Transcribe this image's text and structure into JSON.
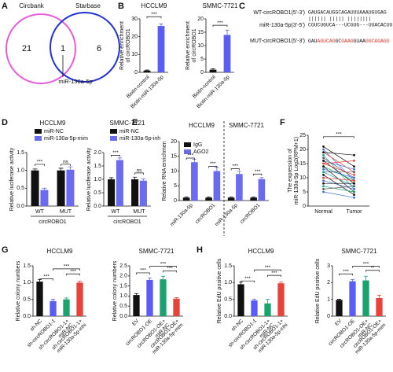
{
  "panels": [
    "A",
    "B",
    "C",
    "D",
    "E",
    "F",
    "G",
    "H"
  ],
  "venn": {
    "sets": [
      {
        "label": "Circbank",
        "count": 21
      },
      {
        "label": "Starbase",
        "count": 6
      }
    ],
    "overlap": {
      "count": 1,
      "label": "miR-130a-5p"
    }
  },
  "sequences": {
    "wt_label": "WT-circROBO1(5'-3')",
    "wt": "GAUGACAUGGCAGAUUUAAAUGUGAG",
    "pairing": "||||||   |||||    ||||||||",
    "mir_label": "miR-130a-5p(3'-5')",
    "mir": "CGUCUGUCA---UCGUG---UUACACUU",
    "mut_label": "MUT-circROBO1(5'-3')",
    "mut": [
      {
        "text": "GAU",
        "color": "#111111"
      },
      {
        "text": "AGUCAG",
        "color": "#e8312a"
      },
      {
        "text": "GC",
        "color": "#111111"
      },
      {
        "text": "GAAG",
        "color": "#e8312a"
      },
      {
        "text": "GUAA",
        "color": "#111111"
      },
      {
        "text": "GGCAGAGG",
        "color": "#e8312a"
      }
    ]
  },
  "chart_data": [
    {
      "type": "bar",
      "title": "HCCLM9",
      "ylabel": "Relative enrichment of circROBO1",
      "categories": [
        "Biotin-control",
        "Biotin-miR-130a-5p"
      ],
      "values": [
        1,
        26
      ],
      "errors": [
        0.3,
        1.2
      ],
      "colors": [
        "#111111",
        "#5b5bf5"
      ],
      "ylim": [
        0,
        30
      ],
      "yticks": [
        0,
        10,
        20,
        30
      ],
      "annotations": [
        "***"
      ]
    },
    {
      "type": "bar",
      "title": "SMMC-7721",
      "ylabel": "Relative enrichment of circROBO1",
      "categories": [
        "Biotin-control",
        "Biotin-miR-130a-5p"
      ],
      "values": [
        1,
        14
      ],
      "errors": [
        0.3,
        1.8
      ],
      "colors": [
        "#111111",
        "#5b5bf5"
      ],
      "ylim": [
        0,
        20
      ],
      "yticks": [
        0,
        5,
        10,
        15,
        20
      ],
      "annotations": [
        "***"
      ]
    },
    {
      "type": "bar",
      "title": "HCCLM9",
      "ylabel": "Relative luciferase activity",
      "xlabel": "circROBO1",
      "categories": [
        "WT",
        "MUT"
      ],
      "series": [
        {
          "name": "miR-NC",
          "color": "#111111",
          "values": [
            1.0,
            1.0
          ],
          "errors": [
            0.04,
            0.06
          ]
        },
        {
          "name": "miR-130a-5p-mim",
          "color": "#6b6bf0",
          "values": [
            0.45,
            1.02
          ],
          "errors": [
            0.05,
            0.08
          ]
        }
      ],
      "ylim": [
        0,
        1.5
      ],
      "yticks": [
        {
          "value": 0,
          "label": "0.0"
        },
        0.5,
        {
          "value": 1,
          "label": "1.0"
        },
        1.5
      ],
      "annotations": [
        "***",
        "ns"
      ]
    },
    {
      "type": "bar",
      "title": "SMMC-7721",
      "ylabel": "Relative luciferase activity",
      "xlabel": "circROBO1",
      "categories": [
        "WT",
        "MUT"
      ],
      "series": [
        {
          "name": "miR-NC",
          "color": "#111111",
          "values": [
            1.0,
            1.0
          ],
          "errors": [
            0.06,
            0.08
          ]
        },
        {
          "name": "miR-130a-5p-inh",
          "color": "#6b6bf0",
          "values": [
            1.72,
            0.95
          ],
          "errors": [
            0.08,
            0.07
          ]
        }
      ],
      "ylim": [
        0,
        2
      ],
      "yticks": [
        {
          "value": 0,
          "label": "0.0"
        },
        0.5,
        {
          "value": 1,
          "label": "1.0"
        },
        1.5,
        {
          "value": 2,
          "label": "2.0"
        }
      ],
      "annotations": [
        "***",
        "ns"
      ]
    },
    {
      "type": "bar",
      "ylabel": "Relative RNA enrichmen",
      "groups": [
        "HCCLM9",
        "SMMC-7721"
      ],
      "categories": [
        "miR-130a-5p",
        "circROBO1",
        "miR-130a-5p",
        "circROBO1"
      ],
      "series": [
        {
          "name": "IgG",
          "color": "#111111",
          "values": [
            1,
            1,
            1,
            1
          ],
          "errors": [
            0.2,
            0.2,
            0.2,
            0.2
          ]
        },
        {
          "name": "AGO2",
          "color": "#6b6bf0",
          "values": [
            13,
            10,
            9,
            7.3
          ],
          "errors": [
            1,
            1.3,
            0.9,
            0.5
          ]
        }
      ],
      "ylim": [
        0,
        20
      ],
      "yticks": [
        0,
        5,
        10,
        15,
        20
      ],
      "annotations": [
        "***",
        "***",
        "***",
        "***"
      ]
    },
    {
      "type": "line",
      "ylabel": "The expression of miR-130a-5p Log2(RPM+1)",
      "categories": [
        "Normal",
        "Tumor"
      ],
      "series": [
        {
          "color": "#111111",
          "values": [
            21,
            14
          ]
        },
        {
          "color": "#3b6fd6",
          "values": [
            20,
            9
          ]
        },
        {
          "color": "#e8433a",
          "values": [
            19,
            12
          ]
        },
        {
          "color": "#1aa3a3",
          "values": [
            18,
            6
          ]
        },
        {
          "color": "#555555",
          "values": [
            17,
            10
          ]
        },
        {
          "color": "#3b6fd6",
          "values": [
            16,
            13
          ]
        },
        {
          "color": "#111111",
          "values": [
            16,
            8
          ]
        },
        {
          "color": "#e8433a",
          "values": [
            15,
            11
          ]
        },
        {
          "color": "#1aa36f",
          "values": [
            14,
            9
          ]
        },
        {
          "color": "#111111",
          "values": [
            14,
            5
          ]
        },
        {
          "color": "#3b6fd6",
          "values": [
            13,
            10
          ]
        },
        {
          "color": "#555555",
          "values": [
            12,
            12
          ]
        },
        {
          "color": "#1aa3a3",
          "values": [
            12,
            7
          ]
        },
        {
          "color": "#111111",
          "values": [
            11,
            4
          ]
        },
        {
          "color": "#e8433a",
          "values": [
            10,
            9
          ]
        },
        {
          "color": "#3b6fd6",
          "values": [
            9,
            6
          ]
        },
        {
          "color": "#111111",
          "values": [
            8,
            8
          ]
        },
        {
          "color": "#1aa36f",
          "values": [
            7,
            5
          ]
        },
        {
          "color": "#555555",
          "values": [
            6,
            7
          ]
        },
        {
          "color": "#3b6fd6",
          "values": [
            5,
            3
          ]
        },
        {
          "color": "#111111",
          "values": [
            19,
            18
          ]
        },
        {
          "color": "#e8433a",
          "values": [
            15,
            16
          ]
        }
      ],
      "ylim": [
        0,
        25
      ],
      "yticks": [
        0,
        5,
        10,
        15,
        20,
        25
      ],
      "annotations": [
        "***"
      ]
    },
    {
      "type": "bar",
      "title": "HCCLM9",
      "ylabel": "Relative colony numbers",
      "categories": [
        "sh-NC",
        "sh-circROBO1-1",
        "sh-circROBO1-1+miR-NC",
        "sh-circROBO1-1+miR-130a-5p-inhi"
      ],
      "values": [
        1.03,
        0.45,
        0.5,
        1.0
      ],
      "errors": [
        0.06,
        0.05,
        0.04,
        0.04
      ],
      "colors": [
        "#111111",
        "#5b5bf5",
        "#1aa36f",
        "#e8433a"
      ],
      "ylim": [
        0,
        1.5
      ],
      "yticks": [
        {
          "value": 0,
          "label": "0.0"
        },
        0.5,
        {
          "value": 1,
          "label": "1.0"
        },
        1.5
      ],
      "annotations": [
        "***",
        "***",
        "***"
      ]
    },
    {
      "type": "bar",
      "title": "SMMC-7721",
      "ylabel": "Relative colony numbers",
      "categories": [
        "EV",
        "circROBO1-OE",
        "circROBO1-OE+miR-NC",
        "circROBO1-OE+miR-130a-5p-mim"
      ],
      "values": [
        1.05,
        1.8,
        1.83,
        0.87
      ],
      "errors": [
        0.07,
        0.1,
        0.15,
        0.05
      ],
      "colors": [
        "#111111",
        "#5b5bf5",
        "#1aa36f",
        "#e8433a"
      ],
      "ylim": [
        0,
        2.5
      ],
      "yticks": [
        {
          "value": 0,
          "label": "0.0"
        },
        0.5,
        {
          "value": 1,
          "label": "1.0"
        },
        1.5,
        {
          "value": 2,
          "label": "2.0"
        },
        2.5
      ],
      "annotations": [
        "***",
        "***",
        "***"
      ]
    },
    {
      "type": "bar",
      "title": "HCCLM9",
      "ylabel": "Relative EdU positive cells",
      "categories": [
        "sh-NC",
        "sh-circROBO1-1",
        "sh-circROBO1-1+miR-NC",
        "sh-circROBO1-1+miR-130a-5p-inhi"
      ],
      "values": [
        0.95,
        0.47,
        0.38,
        0.98
      ],
      "errors": [
        0.06,
        0.04,
        0.12,
        0.04
      ],
      "colors": [
        "#111111",
        "#5b5bf5",
        "#1aa36f",
        "#e8433a"
      ],
      "ylim": [
        0,
        1.5
      ],
      "yticks": [
        {
          "value": 0,
          "label": "0.0"
        },
        0.5,
        {
          "value": 1,
          "label": "1.0"
        },
        1.5
      ],
      "annotations": [
        "***",
        "***",
        "***"
      ]
    },
    {
      "type": "bar",
      "title": "SMMC-7721",
      "ylabel": "Relative EdU positive cells",
      "categories": [
        "EV",
        "circROBO1-OE",
        "circROBO1-OE+miR-NC",
        "circROBO1-OE+miR-130a-5p-mim"
      ],
      "values": [
        0.97,
        2.08,
        2.13,
        1.08
      ],
      "errors": [
        0.04,
        0.1,
        0.25,
        0.17
      ],
      "colors": [
        "#111111",
        "#5b5bf5",
        "#1aa36f",
        "#e8433a"
      ],
      "ylim": [
        0,
        3
      ],
      "yticks": [
        0,
        1,
        2,
        3
      ],
      "annotations": [
        "***",
        "***",
        "**"
      ]
    }
  ]
}
